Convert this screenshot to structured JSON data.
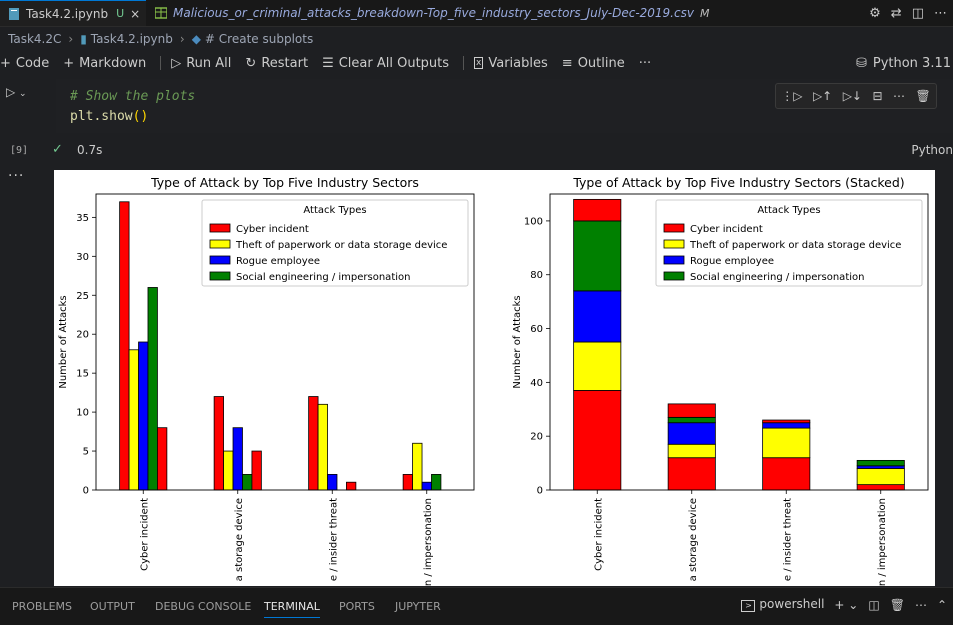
{
  "tabs": [
    {
      "label": "Task4.2.ipynb",
      "badge": "U",
      "close": "×"
    },
    {
      "label": "Malicious_or_criminal_attacks_breakdown-Top_five_industry_sectors_July-Dec-2019.csv",
      "badge": "M"
    }
  ],
  "breadcrumb": [
    "Task4.2C",
    "Task4.2.ipynb",
    "# Create subplots"
  ],
  "toolbar": {
    "code": "Code",
    "markdown": "Markdown",
    "run_all": "Run All",
    "restart": "Restart",
    "clear_outputs": "Clear All Outputs",
    "variables": "Variables",
    "outline": "Outline",
    "more": "···",
    "kernel": "Python 3.11"
  },
  "cell": {
    "comment": "# Show the plots",
    "code_fn": "plt.show",
    "code_parens": "()",
    "exec_count": "[9]",
    "duration": "0.7s",
    "language": "Python",
    "output_more": "···"
  },
  "chart_data": [
    {
      "type": "bar",
      "title": "Type of Attack by Top Five Industry Sectors",
      "ylabel": "Number of Attacks",
      "xlabel": "",
      "ylim": [
        0,
        38
      ],
      "yticks": [
        0,
        5,
        10,
        15,
        20,
        25,
        30,
        35
      ],
      "legend_title": "Attack Types",
      "legend_position": "top-right",
      "category_labels_visible": [
        "Cyber incident",
        "a storage device",
        "e / insider threat",
        "n / impersonation"
      ],
      "group_values": [
        [
          37,
          18,
          19,
          26,
          8
        ],
        [
          12,
          5,
          8,
          2,
          5
        ],
        [
          12,
          11,
          2,
          0,
          1
        ],
        [
          2,
          6,
          1,
          2,
          0
        ]
      ],
      "bar_colors": [
        "#ff0000",
        "#ffff00",
        "#0000ff",
        "#008000",
        "#ff0000"
      ],
      "series": [
        {
          "name": "Cyber incident",
          "color": "#ff0000"
        },
        {
          "name": "Theft of paperwork or data storage device",
          "color": "#ffff00"
        },
        {
          "name": "Rogue employee",
          "color": "#0000ff"
        },
        {
          "name": "Social engineering / impersonation",
          "color": "#008000"
        }
      ]
    },
    {
      "type": "bar",
      "stacked": true,
      "title": "Type of Attack by Top Five Industry Sectors (Stacked)",
      "ylabel": "Number of Attacks",
      "xlabel": "",
      "ylim": [
        0,
        110
      ],
      "yticks": [
        0,
        20,
        40,
        60,
        80,
        100
      ],
      "legend_title": "Attack Types",
      "legend_position": "top-right",
      "category_labels_visible": [
        "Cyber incident",
        "a storage device",
        "e / insider threat",
        "n / impersonation"
      ],
      "stack_segments": [
        [
          {
            "value": 37,
            "color": "#ff0000"
          },
          {
            "value": 18,
            "color": "#ffff00"
          },
          {
            "value": 19,
            "color": "#0000ff"
          },
          {
            "value": 26,
            "color": "#008000"
          },
          {
            "value": 8,
            "color": "#ff0000"
          }
        ],
        [
          {
            "value": 12,
            "color": "#ff0000"
          },
          {
            "value": 5,
            "color": "#ffff00"
          },
          {
            "value": 8,
            "color": "#0000ff"
          },
          {
            "value": 2,
            "color": "#008000"
          },
          {
            "value": 5,
            "color": "#ff0000"
          }
        ],
        [
          {
            "value": 12,
            "color": "#ff0000"
          },
          {
            "value": 11,
            "color": "#ffff00"
          },
          {
            "value": 2,
            "color": "#0000ff"
          },
          {
            "value": 0,
            "color": "#008000"
          },
          {
            "value": 1,
            "color": "#ff0000"
          }
        ],
        [
          {
            "value": 2,
            "color": "#ff0000"
          },
          {
            "value": 6,
            "color": "#ffff00"
          },
          {
            "value": 1,
            "color": "#0000ff"
          },
          {
            "value": 2,
            "color": "#008000"
          },
          {
            "value": 0,
            "color": "#ff0000"
          }
        ]
      ],
      "series": [
        {
          "name": "Cyber incident",
          "color": "#ff0000"
        },
        {
          "name": "Theft of paperwork or data storage device",
          "color": "#ffff00"
        },
        {
          "name": "Rogue employee",
          "color": "#0000ff"
        },
        {
          "name": "Social engineering / impersonation",
          "color": "#008000"
        }
      ]
    }
  ],
  "panel": {
    "tabs": [
      "PROBLEMS",
      "OUTPUT",
      "DEBUG CONSOLE",
      "TERMINAL",
      "PORTS",
      "JUPYTER"
    ],
    "active": "TERMINAL",
    "shell": "powershell"
  }
}
